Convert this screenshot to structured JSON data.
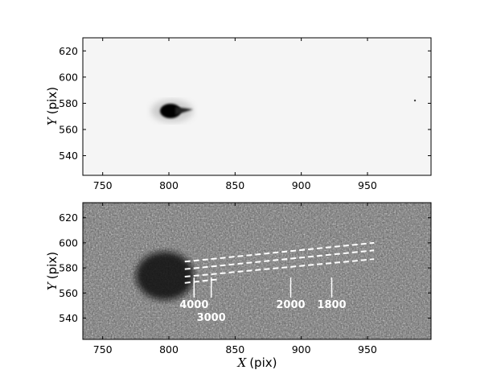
{
  "chart_data": [
    {
      "type": "heatmap",
      "panel": "top",
      "description_values": "direct image, bright compact source with short tail",
      "source": {
        "x": 801,
        "y": 574
      },
      "xlim": [
        735,
        998
      ],
      "ylim": [
        525,
        630
      ],
      "xticks": [
        750,
        800,
        850,
        900,
        950
      ],
      "yticks": [
        540,
        560,
        580,
        600,
        620
      ],
      "xlabel": "",
      "ylabel": {
        "var": "Y",
        "unit": "(pix)"
      },
      "colormap": "inverted gray",
      "background": "#f4f4f4"
    },
    {
      "type": "heatmap",
      "panel": "bottom",
      "xlim": [
        735,
        998
      ],
      "ylim": [
        523,
        632
      ],
      "xticks": [
        750,
        800,
        850,
        900,
        950
      ],
      "yticks": [
        540,
        560,
        580,
        600,
        620
      ],
      "xlabel": {
        "var": "X",
        "unit": "(pix)"
      },
      "ylabel": {
        "var": "Y",
        "unit": "(pix)"
      },
      "colormap": "gray",
      "dark_blob": {
        "x": 795,
        "y": 575
      },
      "traces": [
        {
          "x": [
            812,
            838
          ],
          "y": [
            568,
            571
          ]
        },
        {
          "x": [
            812,
            955
          ],
          "y": [
            579,
            594
          ]
        },
        {
          "x": [
            812,
            955
          ],
          "y": [
            573,
            587
          ]
        },
        {
          "x": [
            812,
            955
          ],
          "y": [
            585,
            600
          ]
        }
      ],
      "wavelength_marks": [
        {
          "label": "4000",
          "x": 819
        },
        {
          "label": "3000",
          "x": 832
        },
        {
          "label": "2000",
          "x": 892
        },
        {
          "label": "1800",
          "x": 923
        }
      ]
    }
  ]
}
